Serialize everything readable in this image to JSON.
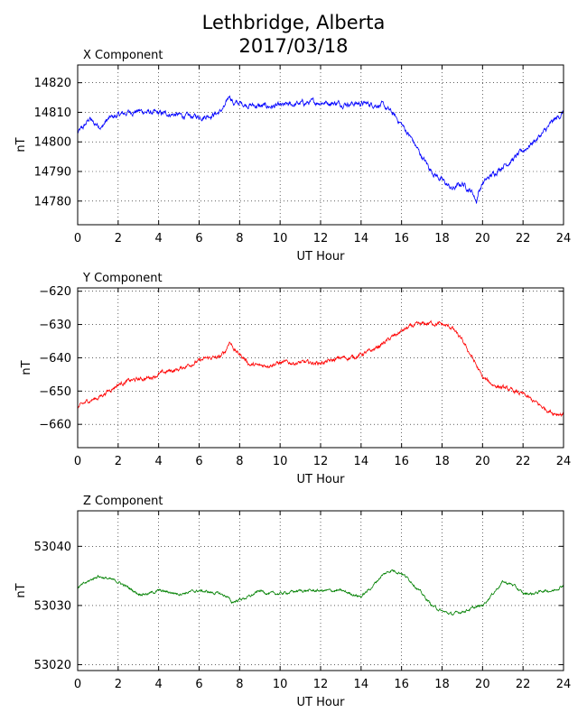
{
  "figure": {
    "title_line1": "Lethbridge, Alberta",
    "title_line2": "2017/03/18"
  },
  "chart_data": [
    {
      "type": "line",
      "title": "X Component",
      "xlabel": "UT Hour",
      "ylabel": "nT",
      "xlim": [
        0,
        24
      ],
      "ylim": [
        14772,
        14826
      ],
      "xticks": [
        0,
        2,
        4,
        6,
        8,
        10,
        12,
        14,
        16,
        18,
        20,
        22,
        24
      ],
      "yticks": [
        14780,
        14790,
        14800,
        14810,
        14820
      ],
      "grid": true,
      "color": "#0000ff",
      "noise": 1.2,
      "x": [
        0,
        0.3,
        0.6,
        0.8,
        1.0,
        1.2,
        1.4,
        1.6,
        2.0,
        2.5,
        3.0,
        3.5,
        4.0,
        4.5,
        5.0,
        5.5,
        6.0,
        6.5,
        7.0,
        7.3,
        7.5,
        7.7,
        8.0,
        8.5,
        9.0,
        10.0,
        11.0,
        12.0,
        13.0,
        14.0,
        15.0,
        15.5,
        16.0,
        16.5,
        17.0,
        17.5,
        18.0,
        18.5,
        19.0,
        19.5,
        19.7,
        19.8,
        20.0,
        20.5,
        21.0,
        21.5,
        22.0,
        22.5,
        23.0,
        23.5,
        24.0
      ],
      "y": [
        14803,
        14805,
        14808,
        14806,
        14806,
        14805,
        14807,
        14808,
        14809,
        14810,
        14810.5,
        14810,
        14809.5,
        14809.5,
        14809,
        14808.5,
        14808.5,
        14809,
        14810,
        14812,
        14816,
        14813,
        14813,
        14812.5,
        14812,
        14812,
        14813,
        14813.5,
        14813,
        14813,
        14812.5,
        14810,
        14806,
        14801,
        14795,
        14790,
        14787,
        14784,
        14786,
        14783,
        14780,
        14783,
        14786,
        14789,
        14792,
        14794,
        14797,
        14800,
        14803,
        14807,
        14810
      ]
    },
    {
      "type": "line",
      "title": "Y Component",
      "xlabel": "UT Hour",
      "ylabel": "nT",
      "xlim": [
        0,
        24
      ],
      "ylim": [
        -667,
        -619
      ],
      "xticks": [
        0,
        2,
        4,
        6,
        8,
        10,
        12,
        14,
        16,
        18,
        20,
        22,
        24
      ],
      "yticks": [
        -660,
        -650,
        -640,
        -630,
        -620
      ],
      "grid": true,
      "color": "#ff0000",
      "noise": 0.8,
      "x": [
        0,
        0.5,
        1.0,
        1.5,
        2.0,
        2.5,
        3.0,
        3.5,
        4.0,
        4.5,
        5.0,
        5.5,
        6.0,
        6.5,
        7.0,
        7.3,
        7.5,
        7.8,
        8.2,
        8.5,
        9.0,
        9.5,
        10.0,
        11.0,
        12.0,
        12.5,
        13.0,
        13.5,
        14.0,
        14.5,
        15.0,
        15.5,
        16.0,
        16.5,
        17.0,
        17.5,
        18.0,
        18.5,
        19.0,
        19.5,
        20.0,
        20.5,
        21.0,
        21.5,
        22.0,
        22.5,
        23.0,
        23.5,
        24.0
      ],
      "y": [
        -655,
        -653,
        -652,
        -650,
        -648,
        -647,
        -646.5,
        -646,
        -645,
        -644,
        -643.5,
        -642,
        -641,
        -640,
        -640,
        -638,
        -635,
        -638,
        -640,
        -642,
        -642.5,
        -642,
        -641.5,
        -641.5,
        -641.5,
        -641,
        -640,
        -640,
        -639,
        -638,
        -636,
        -634,
        -632,
        -630.5,
        -630,
        -629.5,
        -630,
        -631,
        -635,
        -640,
        -646,
        -648,
        -649,
        -650,
        -651,
        -653,
        -655,
        -656.5,
        -657
      ]
    },
    {
      "type": "line",
      "title": "Z Component",
      "xlabel": "UT Hour",
      "ylabel": "nT",
      "xlim": [
        0,
        24
      ],
      "ylim": [
        53019,
        53046
      ],
      "xticks": [
        0,
        2,
        4,
        6,
        8,
        10,
        12,
        14,
        16,
        18,
        20,
        22,
        24
      ],
      "yticks": [
        53020,
        53030,
        53040
      ],
      "grid": true,
      "color": "#008000",
      "noise": 0.3,
      "x": [
        0,
        0.5,
        1.0,
        1.5,
        2.0,
        2.5,
        3.0,
        3.5,
        4.0,
        5.0,
        6.0,
        7.0,
        7.4,
        7.6,
        8.0,
        8.5,
        9.0,
        9.5,
        10.0,
        11.0,
        12.0,
        13.0,
        13.5,
        14.0,
        14.5,
        15.0,
        15.5,
        16.0,
        16.5,
        17.0,
        17.5,
        18.0,
        18.5,
        19.0,
        19.5,
        20.0,
        20.5,
        21.0,
        21.5,
        22.0,
        22.5,
        23.0,
        23.5,
        24.0
      ],
      "y": [
        53033,
        53034,
        53035,
        53034.5,
        53034,
        53033,
        53032,
        53032,
        53032.5,
        53032,
        53032.5,
        53032,
        53031.5,
        53030.5,
        53031,
        53031.5,
        53032.5,
        53032,
        53032,
        53032.5,
        53032.5,
        53032.5,
        53032,
        53031.5,
        53033,
        53035,
        53036,
        53035.5,
        53034,
        53032,
        53030,
        53029,
        53028.5,
        53029,
        53029.5,
        53030,
        53032,
        53034,
        53033.5,
        53032,
        53032,
        53032.5,
        53032.5,
        53033.5
      ]
    }
  ]
}
